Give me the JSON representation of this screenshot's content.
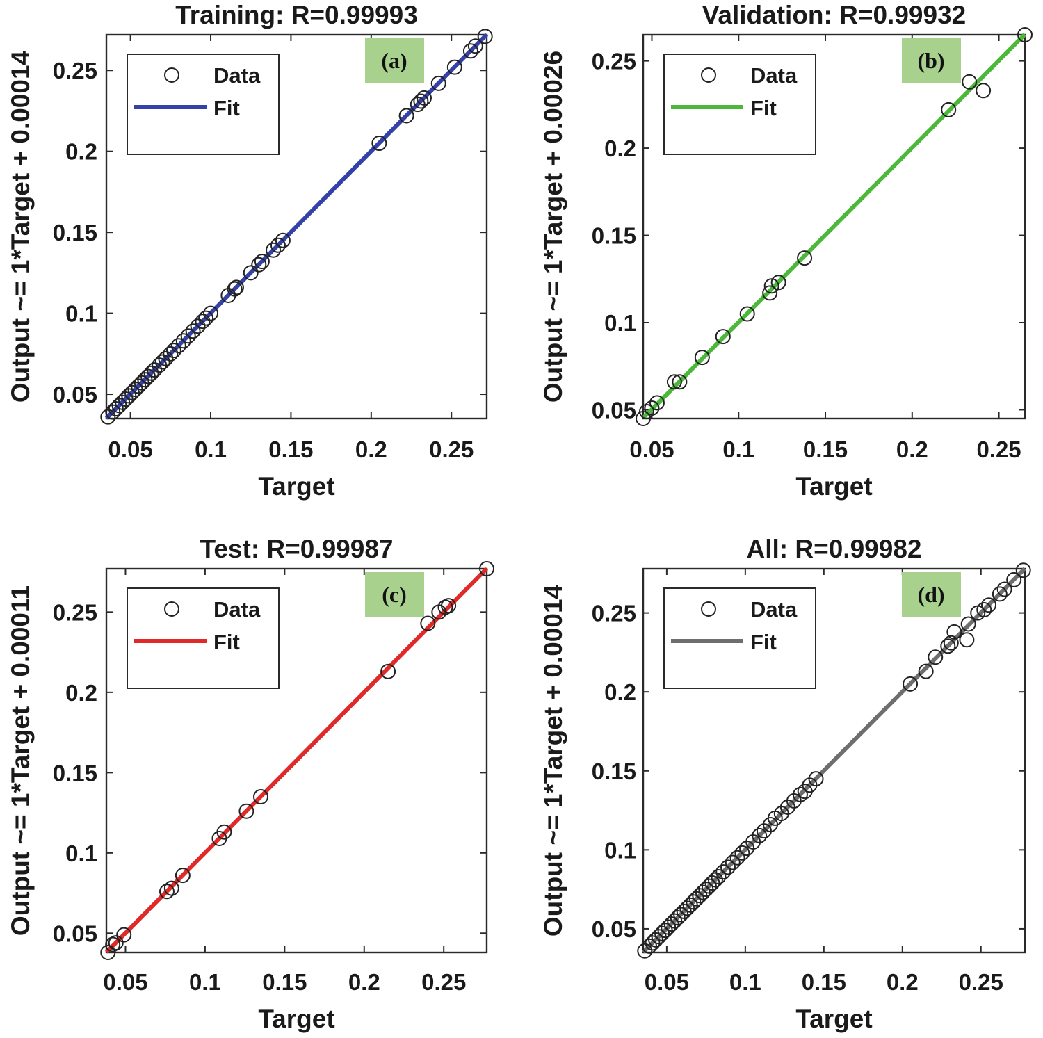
{
  "figure": {
    "background": "#ffffff",
    "panel_tag_bg": "#a9d18e"
  },
  "chart_data": [
    {
      "type": "scatter",
      "panel": "(a)",
      "title": "Training: R=0.99993",
      "xlabel": "Target",
      "ylabel": "Output ~= 1*Target + 0.00014",
      "xlim": [
        0.035,
        0.272
      ],
      "ylim": [
        0.035,
        0.272
      ],
      "xticks": [
        0.05,
        0.1,
        0.15,
        0.2,
        0.25
      ],
      "xtick_labels": [
        "0.05",
        "0.1",
        "0.15",
        "0.2",
        "0.25"
      ],
      "yticks": [
        0.05,
        0.1,
        0.15,
        0.2,
        0.25
      ],
      "ytick_labels": [
        "0.05",
        "0.1",
        "0.15",
        "0.2",
        "0.25"
      ],
      "legend": {
        "position": "top-left",
        "entries": [
          "Data",
          "Fit"
        ]
      },
      "fit": {
        "slope": 1,
        "intercept": 0.00014,
        "color": "#3341a8"
      },
      "data": [
        [
          0.036,
          0.036
        ],
        [
          0.039,
          0.039
        ],
        [
          0.041,
          0.041
        ],
        [
          0.043,
          0.043
        ],
        [
          0.045,
          0.045
        ],
        [
          0.047,
          0.047
        ],
        [
          0.049,
          0.049
        ],
        [
          0.051,
          0.051
        ],
        [
          0.053,
          0.053
        ],
        [
          0.055,
          0.055
        ],
        [
          0.057,
          0.057
        ],
        [
          0.059,
          0.059
        ],
        [
          0.061,
          0.061
        ],
        [
          0.063,
          0.063
        ],
        [
          0.065,
          0.065
        ],
        [
          0.068,
          0.068
        ],
        [
          0.07,
          0.07
        ],
        [
          0.072,
          0.072
        ],
        [
          0.075,
          0.075
        ],
        [
          0.077,
          0.077
        ],
        [
          0.08,
          0.08
        ],
        [
          0.083,
          0.083
        ],
        [
          0.086,
          0.086
        ],
        [
          0.089,
          0.089
        ],
        [
          0.092,
          0.092
        ],
        [
          0.095,
          0.095
        ],
        [
          0.097,
          0.097
        ],
        [
          0.1,
          0.1
        ],
        [
          0.111,
          0.111
        ],
        [
          0.115,
          0.115
        ],
        [
          0.116,
          0.116
        ],
        [
          0.125,
          0.125
        ],
        [
          0.13,
          0.13
        ],
        [
          0.132,
          0.132
        ],
        [
          0.139,
          0.139
        ],
        [
          0.142,
          0.142
        ],
        [
          0.145,
          0.145
        ],
        [
          0.205,
          0.205
        ],
        [
          0.222,
          0.222
        ],
        [
          0.229,
          0.229
        ],
        [
          0.231,
          0.231
        ],
        [
          0.233,
          0.233
        ],
        [
          0.242,
          0.242
        ],
        [
          0.252,
          0.252
        ],
        [
          0.262,
          0.262
        ],
        [
          0.265,
          0.265
        ],
        [
          0.271,
          0.271
        ]
      ]
    },
    {
      "type": "scatter",
      "panel": "(b)",
      "title": "Validation: R=0.99932",
      "xlabel": "Target",
      "ylabel": "Output ~= 1*Target + 0.00026",
      "xlim": [
        0.045,
        0.265
      ],
      "ylim": [
        0.045,
        0.265
      ],
      "xticks": [
        0.05,
        0.1,
        0.15,
        0.2,
        0.25
      ],
      "xtick_labels": [
        "0.05",
        "0.1",
        "0.15",
        "0.2",
        "0.25"
      ],
      "yticks": [
        0.05,
        0.1,
        0.15,
        0.2,
        0.25
      ],
      "ytick_labels": [
        "0.05",
        "0.1",
        "0.15",
        "0.2",
        "0.25"
      ],
      "legend": {
        "position": "top-left",
        "entries": [
          "Data",
          "Fit"
        ]
      },
      "fit": {
        "slope": 1,
        "intercept": 0.00026,
        "color": "#4cb83a"
      },
      "data": [
        [
          0.045,
          0.045
        ],
        [
          0.047,
          0.049
        ],
        [
          0.05,
          0.051
        ],
        [
          0.053,
          0.054
        ],
        [
          0.063,
          0.066
        ],
        [
          0.066,
          0.066
        ],
        [
          0.079,
          0.08
        ],
        [
          0.091,
          0.092
        ],
        [
          0.105,
          0.105
        ],
        [
          0.118,
          0.117
        ],
        [
          0.119,
          0.121
        ],
        [
          0.123,
          0.123
        ],
        [
          0.138,
          0.137
        ],
        [
          0.221,
          0.222
        ],
        [
          0.233,
          0.238
        ],
        [
          0.241,
          0.233
        ],
        [
          0.265,
          0.265
        ]
      ]
    },
    {
      "type": "scatter",
      "panel": "(c)",
      "title": "Test: R=0.99987",
      "xlabel": "Target",
      "ylabel": "Output ~= 1*Target + 0.00011",
      "xlim": [
        0.038,
        0.277
      ],
      "ylim": [
        0.038,
        0.277
      ],
      "xticks": [
        0.05,
        0.1,
        0.15,
        0.2,
        0.25
      ],
      "xtick_labels": [
        "0.05",
        "0.1",
        "0.15",
        "0.2",
        "0.25"
      ],
      "yticks": [
        0.05,
        0.1,
        0.15,
        0.2,
        0.25
      ],
      "ytick_labels": [
        "0.05",
        "0.1",
        "0.15",
        "0.2",
        "0.25"
      ],
      "legend": {
        "position": "top-left",
        "entries": [
          "Data",
          "Fit"
        ]
      },
      "fit": {
        "slope": 1,
        "intercept": 0.00011,
        "color": "#e02a2a"
      },
      "data": [
        [
          0.039,
          0.038
        ],
        [
          0.042,
          0.043
        ],
        [
          0.044,
          0.044
        ],
        [
          0.049,
          0.049
        ],
        [
          0.076,
          0.076
        ],
        [
          0.079,
          0.078
        ],
        [
          0.086,
          0.086
        ],
        [
          0.109,
          0.109
        ],
        [
          0.112,
          0.113
        ],
        [
          0.126,
          0.126
        ],
        [
          0.135,
          0.135
        ],
        [
          0.215,
          0.213
        ],
        [
          0.24,
          0.243
        ],
        [
          0.247,
          0.25
        ],
        [
          0.251,
          0.253
        ],
        [
          0.253,
          0.254
        ],
        [
          0.277,
          0.277
        ]
      ]
    },
    {
      "type": "scatter",
      "panel": "(d)",
      "title": "All: R=0.99982",
      "xlabel": "Target",
      "ylabel": "Output ~= 1*Target + 0.00014",
      "xlim": [
        0.035,
        0.278
      ],
      "ylim": [
        0.035,
        0.278
      ],
      "xticks": [
        0.05,
        0.1,
        0.15,
        0.2,
        0.25
      ],
      "xtick_labels": [
        "0.05",
        "0.1",
        "0.15",
        "0.2",
        "0.25"
      ],
      "yticks": [
        0.05,
        0.1,
        0.15,
        0.2,
        0.25
      ],
      "ytick_labels": [
        "0.05",
        "0.1",
        "0.15",
        "0.2",
        "0.25"
      ],
      "legend": {
        "position": "top-left",
        "entries": [
          "Data",
          "Fit"
        ]
      },
      "fit": {
        "slope": 1,
        "intercept": 0.00014,
        "color": "#6e6e6e"
      },
      "data": [
        [
          0.036,
          0.036
        ],
        [
          0.039,
          0.039
        ],
        [
          0.041,
          0.041
        ],
        [
          0.043,
          0.043
        ],
        [
          0.045,
          0.045
        ],
        [
          0.047,
          0.047
        ],
        [
          0.049,
          0.049
        ],
        [
          0.051,
          0.051
        ],
        [
          0.053,
          0.053
        ],
        [
          0.055,
          0.055
        ],
        [
          0.057,
          0.057
        ],
        [
          0.059,
          0.059
        ],
        [
          0.061,
          0.061
        ],
        [
          0.063,
          0.063
        ],
        [
          0.065,
          0.065
        ],
        [
          0.067,
          0.067
        ],
        [
          0.069,
          0.069
        ],
        [
          0.071,
          0.071
        ],
        [
          0.073,
          0.073
        ],
        [
          0.075,
          0.075
        ],
        [
          0.077,
          0.077
        ],
        [
          0.079,
          0.079
        ],
        [
          0.081,
          0.081
        ],
        [
          0.083,
          0.083
        ],
        [
          0.086,
          0.086
        ],
        [
          0.089,
          0.089
        ],
        [
          0.092,
          0.092
        ],
        [
          0.095,
          0.095
        ],
        [
          0.098,
          0.098
        ],
        [
          0.101,
          0.101
        ],
        [
          0.105,
          0.105
        ],
        [
          0.109,
          0.109
        ],
        [
          0.112,
          0.112
        ],
        [
          0.116,
          0.116
        ],
        [
          0.119,
          0.12
        ],
        [
          0.123,
          0.123
        ],
        [
          0.127,
          0.127
        ],
        [
          0.131,
          0.131
        ],
        [
          0.135,
          0.135
        ],
        [
          0.138,
          0.137
        ],
        [
          0.141,
          0.141
        ],
        [
          0.145,
          0.145
        ],
        [
          0.205,
          0.205
        ],
        [
          0.215,
          0.213
        ],
        [
          0.221,
          0.222
        ],
        [
          0.229,
          0.229
        ],
        [
          0.231,
          0.231
        ],
        [
          0.233,
          0.238
        ],
        [
          0.241,
          0.233
        ],
        [
          0.242,
          0.243
        ],
        [
          0.248,
          0.25
        ],
        [
          0.252,
          0.252
        ],
        [
          0.255,
          0.255
        ],
        [
          0.262,
          0.262
        ],
        [
          0.265,
          0.265
        ],
        [
          0.271,
          0.271
        ],
        [
          0.277,
          0.277
        ]
      ]
    }
  ]
}
